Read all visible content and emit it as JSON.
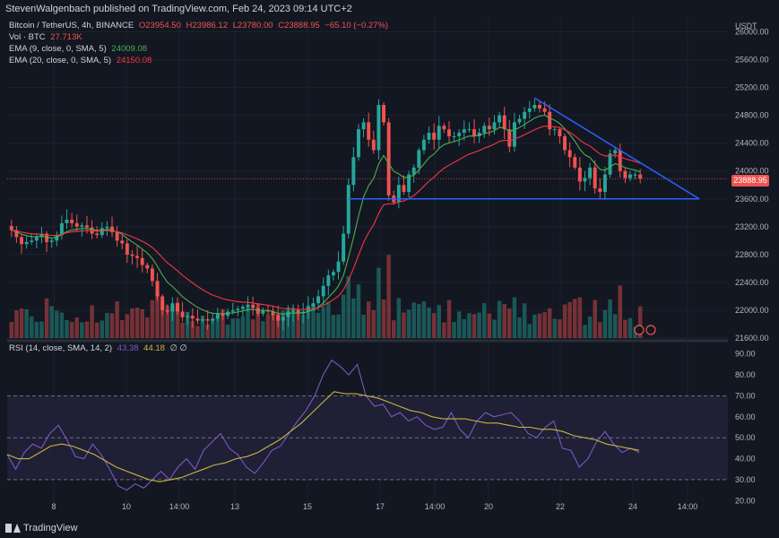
{
  "header": {
    "publisher": "StevenWalgenbach published on TradingView.com, Feb 24, 2023 09:14 UTC+2"
  },
  "legend": {
    "symbol": "Bitcoin / TetherUS, 4h, BINANCE",
    "o": "O23954.50",
    "h": "H23986.12",
    "l": "L23780.00",
    "c": "C23888.95",
    "chg": "−65.10 (−0.27%)",
    "vol_label": "Vol · BTC",
    "vol_value": "27.713K",
    "ema9_label": "EMA (9, close, 0, SMA, 5)",
    "ema9_value": "24009.08",
    "ema20_label": "EMA (20, close, 0, SMA, 5)",
    "ema20_value": "24150.08",
    "rsi_label": "RSI (14, close, SMA, 14, 2)",
    "rsi_value": "43.38",
    "rsi_ma_value": "44.18",
    "rsi_extra": "∅ ∅"
  },
  "price_tag": "23888.95",
  "currency": "USDT",
  "footer": {
    "brand": "TradingView"
  },
  "colors": {
    "up": "#26a69a",
    "down": "#ef5350",
    "ema9": "#4caf50",
    "ema20": "#f23645",
    "rsi": "#7e57c2",
    "rsi_ma": "#c9b640",
    "trend": "#2962ff"
  },
  "chart_data": [
    {
      "type": "candlestick",
      "title": "Bitcoin / TetherUS, 4h, BINANCE",
      "ylim": [
        21600,
        26200
      ],
      "y_ticks": [
        "26000.00",
        "25600.00",
        "25200.00",
        "24800.00",
        "24400.00",
        "24000.00",
        "23600.00",
        "23200.00",
        "22800.00",
        "22400.00",
        "22000.00",
        "21600.00"
      ],
      "x_ticks": [
        "8",
        "10",
        "14:00",
        "13",
        "15",
        "17",
        "14:00",
        "20",
        "22",
        "24",
        "14:00"
      ],
      "closes": [
        23150,
        23050,
        22950,
        22980,
        23000,
        23050,
        23100,
        22980,
        23000,
        23080,
        23250,
        23300,
        23250,
        23200,
        23220,
        23190,
        23100,
        23080,
        23180,
        23200,
        23120,
        23000,
        22960,
        22800,
        22780,
        22750,
        22650,
        22600,
        22420,
        22200,
        22000,
        21980,
        22100,
        21980,
        21900,
        21920,
        21880,
        21850,
        21870,
        21850,
        21880,
        21950,
        21920,
        21980,
        22000,
        22020,
        22050,
        22080,
        22030,
        21950,
        22000,
        21980,
        21930,
        21850,
        21900,
        21980,
        22000,
        21950,
        21980,
        22050,
        22100,
        22200,
        22350,
        22500,
        22550,
        22700,
        23100,
        23800,
        24200,
        24600,
        24700,
        24450,
        24300,
        24950,
        24700,
        23650,
        23550,
        23800,
        23700,
        23950,
        24050,
        24300,
        24450,
        24550,
        24450,
        24650,
        24600,
        24500,
        24500,
        24550,
        24600,
        24600,
        24500,
        24550,
        24650,
        24600,
        24700,
        24800,
        24600,
        24350,
        24700,
        24750,
        24850,
        24900,
        24950,
        24900,
        24850,
        24600,
        24600,
        24500,
        24300,
        24200,
        24050,
        23850,
        23900,
        24050,
        23750,
        23700,
        23950,
        24250,
        24300,
        24000,
        23900,
        23950,
        23950,
        23890
      ],
      "ema9_last": 24009.08,
      "ema20_last": 24150.08,
      "volume": {
        "label": "Vol · BTC",
        "last": "27.713K"
      },
      "triangle": {
        "apex_price": 23600,
        "support": 23600,
        "top_start_price": 25050
      }
    },
    {
      "type": "line",
      "title": "RSI (14, close, SMA, 14, 2)",
      "ylim": [
        15,
        95
      ],
      "y_ticks": [
        "90.00",
        "80.00",
        "70.00",
        "60.00",
        "50.00",
        "40.00",
        "30.00",
        "20.00"
      ],
      "bands": [
        30,
        50,
        70
      ],
      "series": [
        {
          "name": "RSI",
          "values": [
            42,
            35,
            43,
            47,
            45,
            52,
            56,
            49,
            41,
            40,
            47,
            42,
            35,
            27,
            25,
            28,
            26,
            30,
            34,
            30,
            36,
            40,
            35,
            44,
            48,
            52,
            45,
            42,
            36,
            33,
            38,
            44,
            46,
            52,
            58,
            63,
            70,
            80,
            87,
            84,
            80,
            85,
            70,
            65,
            66,
            60,
            62,
            58,
            60,
            56,
            54,
            55,
            62,
            54,
            50,
            58,
            62,
            60,
            61,
            62,
            58,
            52,
            50,
            55,
            58,
            45,
            44,
            36,
            40,
            48,
            53,
            47,
            43,
            45,
            43
          ]
        },
        {
          "name": "RSI MA",
          "values": [
            42,
            40,
            40,
            43,
            46,
            47,
            46,
            44,
            42,
            39,
            36,
            34,
            32,
            30,
            29,
            30,
            31,
            33,
            35,
            37,
            38,
            40,
            41,
            43,
            46,
            49,
            53,
            57,
            62,
            67,
            72,
            71,
            71,
            70,
            69,
            67,
            65,
            63,
            62,
            60,
            59,
            59,
            59,
            58,
            57,
            57,
            56,
            55,
            55,
            54,
            54,
            53,
            51,
            50,
            49,
            47,
            46,
            45,
            44
          ]
        }
      ],
      "last_rsi": 43.38,
      "last_ma": 44.18
    }
  ]
}
